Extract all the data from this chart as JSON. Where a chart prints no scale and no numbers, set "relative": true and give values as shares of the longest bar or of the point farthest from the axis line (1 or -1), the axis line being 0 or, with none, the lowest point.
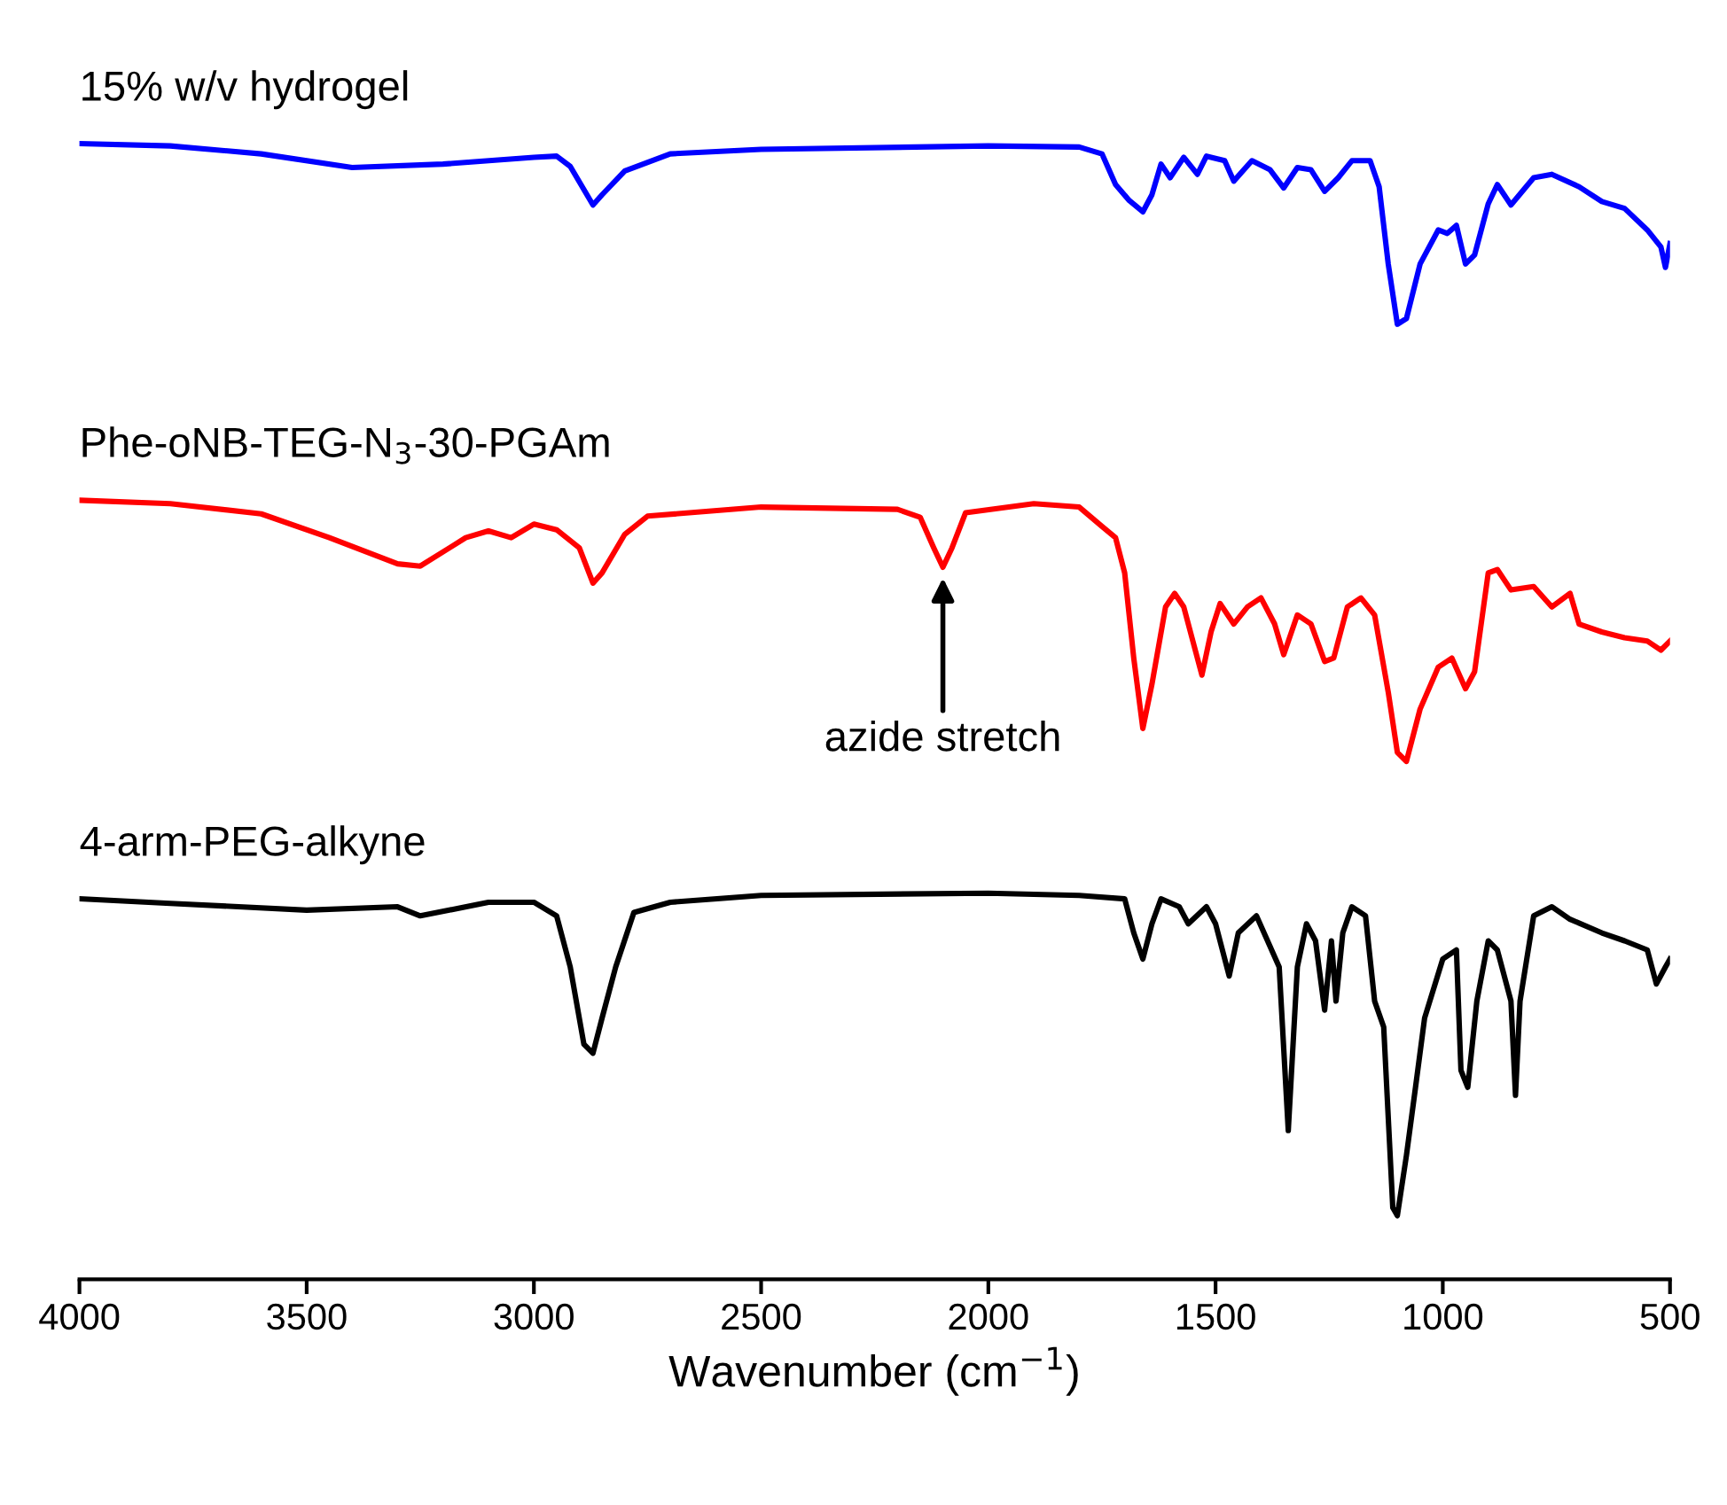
{
  "chart_data": {
    "type": "line",
    "relative": true,
    "xlabel": "Wavenumber (cm$^{−1}$)",
    "xlim": [
      4000,
      500
    ],
    "xticks": [
      4000,
      3500,
      3000,
      2500,
      2000,
      1500,
      1000,
      500
    ],
    "grid": false,
    "legend": false,
    "marker": "none",
    "line_style": "solid",
    "tick_labels": "x",
    "annotations": [
      {
        "text": "azide stretch",
        "x": 2100,
        "y": 0.622
      }
    ],
    "series": [
      {
        "name": "15% w/v hydrogel",
        "color": "#0000ff",
        "x": [
          4000,
          3800,
          3600,
          3400,
          3200,
          3000,
          2950,
          2920,
          2870,
          2850,
          2800,
          2700,
          2500,
          2000,
          1800,
          1750,
          1720,
          1690,
          1660,
          1640,
          1620,
          1600,
          1570,
          1540,
          1520,
          1480,
          1460,
          1420,
          1380,
          1350,
          1320,
          1290,
          1260,
          1230,
          1200,
          1160,
          1140,
          1120,
          1100,
          1080,
          1050,
          1010,
          990,
          970,
          950,
          930,
          900,
          880,
          850,
          800,
          760,
          700,
          650,
          600,
          550,
          520,
          510,
          500
        ],
        "values": [
          1.0,
          0.998,
          0.991,
          0.979,
          0.982,
          0.988,
          0.989,
          0.98,
          0.946,
          0.955,
          0.976,
          0.991,
          0.995,
          0.998,
          0.997,
          0.991,
          0.964,
          0.95,
          0.94,
          0.955,
          0.982,
          0.97,
          0.988,
          0.973,
          0.989,
          0.985,
          0.967,
          0.985,
          0.977,
          0.961,
          0.979,
          0.977,
          0.958,
          0.97,
          0.985,
          0.985,
          0.962,
          0.894,
          0.841,
          0.846,
          0.894,
          0.924,
          0.921,
          0.928,
          0.894,
          0.902,
          0.947,
          0.964,
          0.946,
          0.97,
          0.973,
          0.962,
          0.949,
          0.943,
          0.924,
          0.909,
          0.891,
          0.912
        ]
      },
      {
        "name": "Phe-oNB-TEG-N$_{3}$-30-PGAm",
        "color": "#ff0000",
        "x": [
          4000,
          3800,
          3600,
          3450,
          3300,
          3250,
          3150,
          3100,
          3050,
          3000,
          2950,
          2900,
          2870,
          2850,
          2800,
          2750,
          2500,
          2200,
          2150,
          2120,
          2100,
          2080,
          2050,
          1900,
          1800,
          1750,
          1720,
          1700,
          1680,
          1660,
          1640,
          1610,
          1590,
          1570,
          1550,
          1530,
          1510,
          1490,
          1460,
          1430,
          1400,
          1370,
          1350,
          1320,
          1290,
          1260,
          1240,
          1210,
          1180,
          1150,
          1120,
          1100,
          1080,
          1050,
          1010,
          980,
          950,
          930,
          900,
          880,
          850,
          800,
          760,
          720,
          700,
          650,
          600,
          550,
          520,
          500
        ],
        "values": [
          0.686,
          0.683,
          0.674,
          0.653,
          0.63,
          0.628,
          0.653,
          0.659,
          0.653,
          0.665,
          0.66,
          0.644,
          0.613,
          0.622,
          0.656,
          0.672,
          0.68,
          0.678,
          0.671,
          0.644,
          0.627,
          0.644,
          0.675,
          0.683,
          0.68,
          0.663,
          0.653,
          0.622,
          0.547,
          0.485,
          0.524,
          0.592,
          0.604,
          0.592,
          0.562,
          0.532,
          0.57,
          0.595,
          0.577,
          0.592,
          0.6,
          0.577,
          0.55,
          0.585,
          0.577,
          0.544,
          0.547,
          0.592,
          0.6,
          0.585,
          0.517,
          0.464,
          0.456,
          0.502,
          0.539,
          0.547,
          0.52,
          0.535,
          0.622,
          0.625,
          0.607,
          0.61,
          0.592,
          0.604,
          0.577,
          0.57,
          0.565,
          0.562,
          0.554,
          0.562
        ]
      },
      {
        "name": "4-arm-PEG-alkyne",
        "color": "#000000",
        "x": [
          4000,
          3800,
          3500,
          3300,
          3250,
          3100,
          3000,
          2950,
          2920,
          2890,
          2870,
          2850,
          2820,
          2780,
          2700,
          2500,
          2000,
          1800,
          1700,
          1680,
          1660,
          1640,
          1620,
          1580,
          1560,
          1520,
          1500,
          1470,
          1450,
          1410,
          1360,
          1340,
          1320,
          1300,
          1280,
          1260,
          1245,
          1235,
          1220,
          1200,
          1170,
          1150,
          1130,
          1110,
          1100,
          1080,
          1060,
          1040,
          1000,
          970,
          960,
          945,
          925,
          900,
          880,
          850,
          840,
          830,
          800,
          760,
          720,
          650,
          600,
          550,
          530,
          510,
          500
        ],
        "values": [
          0.335,
          0.331,
          0.325,
          0.328,
          0.32,
          0.332,
          0.332,
          0.32,
          0.275,
          0.207,
          0.199,
          0.23,
          0.275,
          0.323,
          0.332,
          0.338,
          0.34,
          0.338,
          0.335,
          0.305,
          0.282,
          0.313,
          0.335,
          0.328,
          0.313,
          0.328,
          0.313,
          0.267,
          0.305,
          0.32,
          0.275,
          0.131,
          0.275,
          0.313,
          0.298,
          0.237,
          0.298,
          0.245,
          0.305,
          0.328,
          0.32,
          0.245,
          0.222,
          0.063,
          0.056,
          0.109,
          0.169,
          0.23,
          0.282,
          0.29,
          0.184,
          0.169,
          0.245,
          0.298,
          0.29,
          0.245,
          0.162,
          0.245,
          0.32,
          0.328,
          0.317,
          0.305,
          0.298,
          0.29,
          0.26,
          0.275,
          0.282
        ]
      }
    ]
  }
}
